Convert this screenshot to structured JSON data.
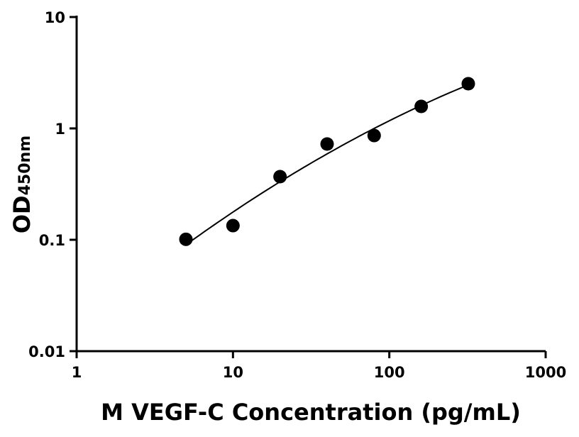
{
  "chart_data": {
    "type": "scatter",
    "title": "",
    "xlabel": "M VEGF-C Concentration (pg/mL)",
    "ylabel": "OD",
    "ylabel_subscript": "450nm",
    "xscale": "log",
    "yscale": "log",
    "xlim": [
      1,
      1000
    ],
    "ylim": [
      0.01,
      10
    ],
    "xticks": [
      {
        "v": 1,
        "label": "1"
      },
      {
        "v": 10,
        "label": "10"
      },
      {
        "v": 100,
        "label": "100"
      },
      {
        "v": 1000,
        "label": "1000"
      }
    ],
    "yticks": [
      {
        "v": 0.01,
        "label": "0.01"
      },
      {
        "v": 0.1,
        "label": "0.1"
      },
      {
        "v": 1,
        "label": "1"
      },
      {
        "v": 10,
        "label": "10"
      }
    ],
    "grid": false,
    "fit_curve": true,
    "marker_color": "#000000",
    "points": [
      {
        "x": 5,
        "y": 0.101
      },
      {
        "x": 10,
        "y": 0.134
      },
      {
        "x": 20,
        "y": 0.369
      },
      {
        "x": 40,
        "y": 0.724
      },
      {
        "x": 80,
        "y": 0.863
      },
      {
        "x": 160,
        "y": 1.575
      },
      {
        "x": 320,
        "y": 2.52
      }
    ]
  }
}
